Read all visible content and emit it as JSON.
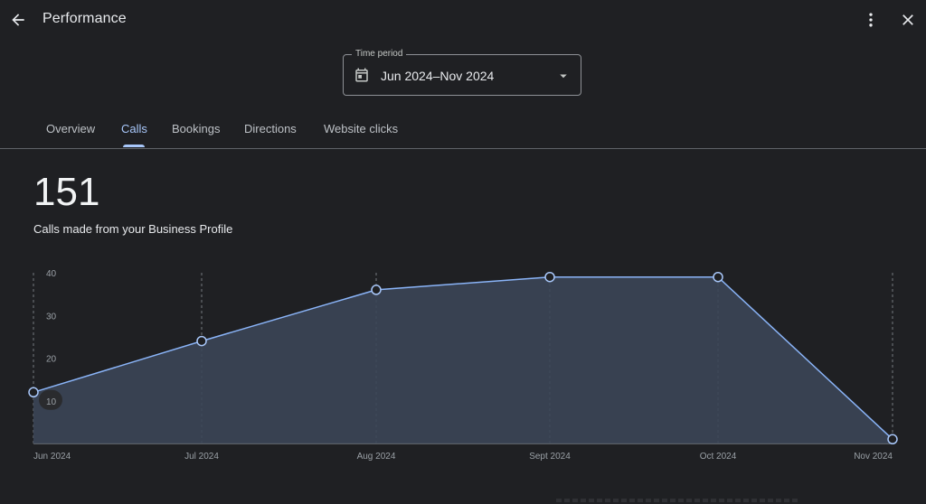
{
  "header": {
    "title": "Performance",
    "back_icon": "arrow-back-icon",
    "menu_icon": "more-vert-icon",
    "close_icon": "close-icon"
  },
  "time_period": {
    "label": "Time period",
    "value": "Jun 2024–Nov 2024",
    "icon": "calendar-icon"
  },
  "tabs": [
    {
      "label": "Overview",
      "active": false
    },
    {
      "label": "Calls",
      "active": true
    },
    {
      "label": "Bookings",
      "active": false
    },
    {
      "label": "Directions",
      "active": false
    },
    {
      "label": "Website clicks",
      "active": false
    }
  ],
  "metric": {
    "value": "151",
    "description": "Calls made from your Business Profile"
  },
  "colors": {
    "accent": "#a8c7fa",
    "line": "#8ab4f8",
    "area": "#3b4556"
  },
  "chart_data": {
    "type": "area",
    "categories": [
      "Jun 2024",
      "Jul 2024",
      "Aug 2024",
      "Sept 2024",
      "Oct 2024",
      "Nov 2024"
    ],
    "values": [
      12,
      24,
      36,
      39,
      39,
      1
    ],
    "y_ticks": [
      "10",
      "20",
      "30",
      "40"
    ],
    "ylim": [
      0,
      40
    ],
    "grid": "vertical-dashed"
  }
}
